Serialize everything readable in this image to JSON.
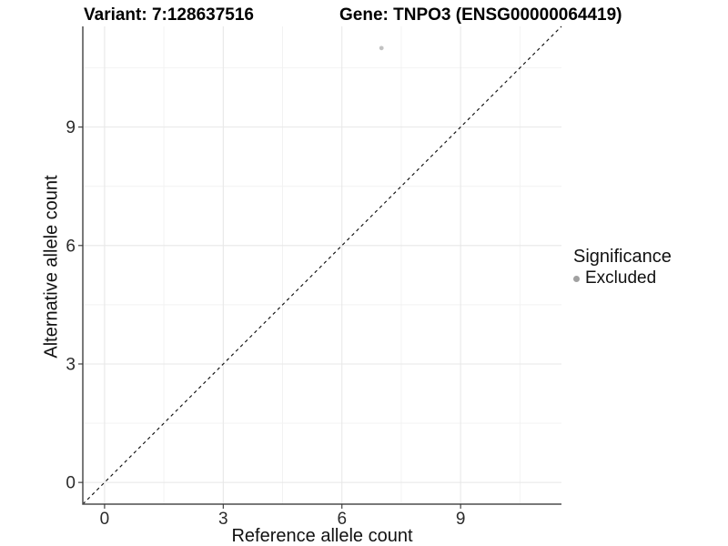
{
  "chart_data": {
    "type": "scatter",
    "title_left": "Variant: 7:128637516",
    "title_right": "Gene: TNPO3 (ENSG00000064419)",
    "xlabel": "Reference allele count",
    "ylabel": "Alternative allele count",
    "xlim": [
      -0.55,
      11.55
    ],
    "ylim": [
      -0.55,
      11.55
    ],
    "x_major_ticks": [
      0,
      3,
      6,
      9
    ],
    "y_major_ticks": [
      0,
      3,
      6,
      9
    ],
    "x_minor_ticks": [
      1.5,
      4.5,
      7.5,
      10.5
    ],
    "y_minor_ticks": [
      1.5,
      4.5,
      7.5,
      10.5
    ],
    "grid": "major+minor",
    "reference_line": {
      "slope": 1,
      "intercept": 0,
      "style": "dashed"
    },
    "series": [
      {
        "name": "Excluded",
        "points": [
          {
            "x": 7,
            "y": 11
          }
        ]
      }
    ],
    "legend": {
      "title": "Significance",
      "position": "right",
      "items": [
        {
          "label": "Excluded",
          "color": "#a1a1a1"
        }
      ]
    }
  },
  "colors": {
    "background": "#ffffff",
    "axis_line": "#4d4d4d",
    "tick_mark": "#333333",
    "tick_label": "#2b2b2b",
    "grid_major": "#e7e7e7",
    "grid_minor": "#f2f2f2",
    "reference_line": "#111111",
    "point": "#c2c2c2",
    "legend_point": "#a1a1a1",
    "title": "#000000"
  }
}
